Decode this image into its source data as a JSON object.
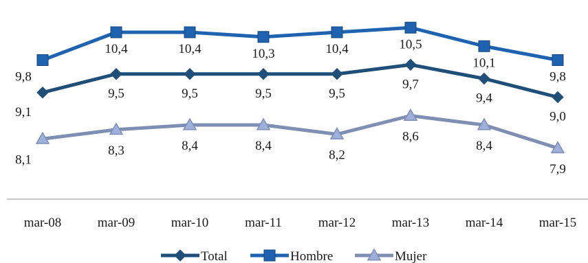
{
  "chart_data": {
    "type": "line",
    "title": "",
    "xlabel": "",
    "ylabel": "",
    "categories": [
      "mar-08",
      "mar-09",
      "mar-10",
      "mar-11",
      "mar-12",
      "mar-13",
      "mar-14",
      "mar-15"
    ],
    "ylim": [
      6.8,
      10.8
    ],
    "grid": false,
    "legend_position": "bottom",
    "series": [
      {
        "name": "Total",
        "values": [
          9.1,
          9.5,
          9.5,
          9.5,
          9.5,
          9.7,
          9.4,
          9.0
        ],
        "labels": [
          "9,1",
          "9,5",
          "9,5",
          "9,5",
          "9,5",
          "9,7",
          "9,4",
          "9,0"
        ],
        "color": "#1f4e79",
        "marker": "diamond",
        "label_position": "below"
      },
      {
        "name": "Hombre",
        "values": [
          9.8,
          10.4,
          10.4,
          10.3,
          10.4,
          10.5,
          10.1,
          9.8
        ],
        "labels": [
          "9,8",
          "10,4",
          "10,4",
          "10,3",
          "10,4",
          "10,5",
          "10,1",
          "9,8"
        ],
        "color": "#1f62b0",
        "marker": "square",
        "label_position": "below"
      },
      {
        "name": "Mujer",
        "values": [
          8.1,
          8.3,
          8.4,
          8.4,
          8.2,
          8.6,
          8.4,
          7.9
        ],
        "labels": [
          "8,1",
          "8,3",
          "8,4",
          "8,4",
          "8,2",
          "8,6",
          "8,4",
          "7,9"
        ],
        "color": "#7f8fb3",
        "marker": "triangle",
        "label_position": "below"
      }
    ]
  }
}
